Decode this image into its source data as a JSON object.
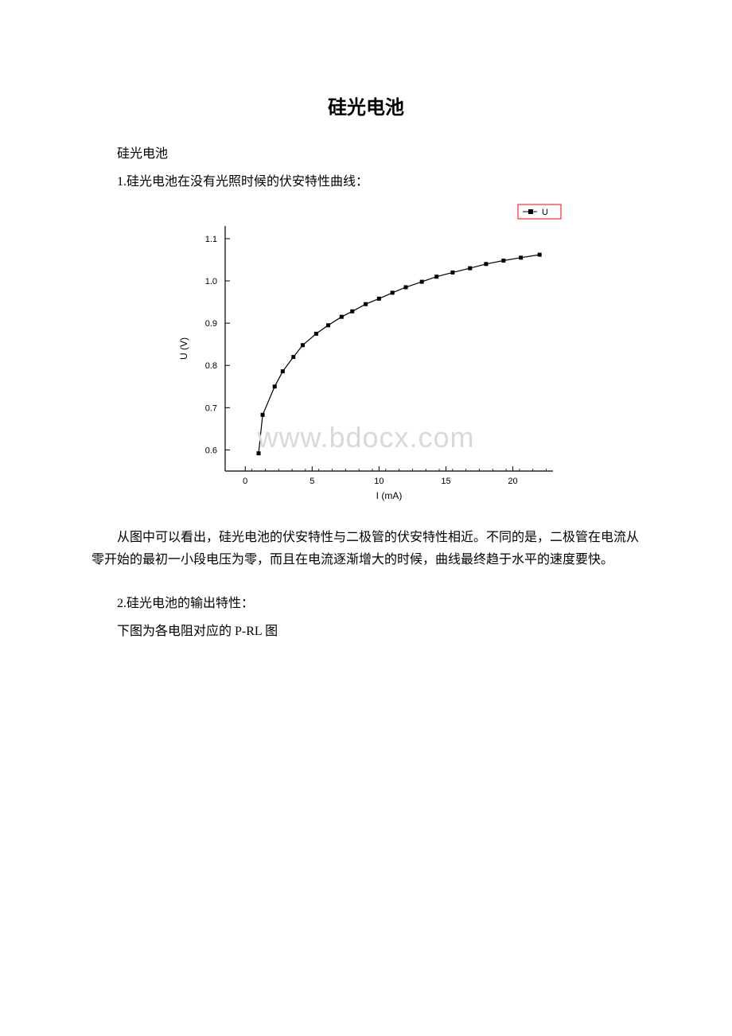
{
  "doc": {
    "title": "硅光电池",
    "p1": "硅光电池",
    "p2": "1.硅光电池在没有光照时候的伏安特性曲线：",
    "p3": "从图中可以看出，硅光电池的伏安特性与二极管的伏安特性相近。不同的是，二极管在电流从零开始的最初一小段电压为零，而且在电流逐渐增大的时候，曲线最终趋于水平的速度要快。",
    "p4": "2.硅光电池的输出特性：",
    "p5": "下图为各电阻对应的 P-RL 图"
  },
  "chart": {
    "type": "line",
    "series_label": "U",
    "marker_shape": "square",
    "marker_size": 5,
    "marker_color": "#000000",
    "line_color": "#000000",
    "line_width": 1.2,
    "ylabel": "U (V)",
    "xlabel": "I (mA)",
    "axis_fontsize": 12,
    "tick_fontsize": 11,
    "legend_border_color": "#ff0000",
    "legend_text_color": "#000000",
    "background_color": "#ffffff",
    "plot_border_color": "#000000",
    "xlim": [
      -1.5,
      23
    ],
    "ylim": [
      0.55,
      1.13
    ],
    "xticks": [
      0,
      5,
      10,
      15,
      20
    ],
    "yticks": [
      0.6,
      0.7,
      0.8,
      0.9,
      1.0,
      1.1
    ],
    "data_x": [
      1.0,
      1.3,
      2.2,
      2.8,
      3.6,
      4.3,
      5.3,
      6.2,
      7.2,
      8.0,
      9.0,
      10.0,
      11.0,
      12.0,
      13.2,
      14.3,
      15.5,
      16.8,
      18.0,
      19.3,
      20.6,
      22.0
    ],
    "data_y": [
      0.592,
      0.683,
      0.75,
      0.786,
      0.82,
      0.848,
      0.875,
      0.895,
      0.915,
      0.928,
      0.945,
      0.958,
      0.972,
      0.985,
      0.998,
      1.01,
      1.02,
      1.03,
      1.04,
      1.048,
      1.055,
      1.062
    ]
  },
  "watermark": "www.bdocx.com"
}
